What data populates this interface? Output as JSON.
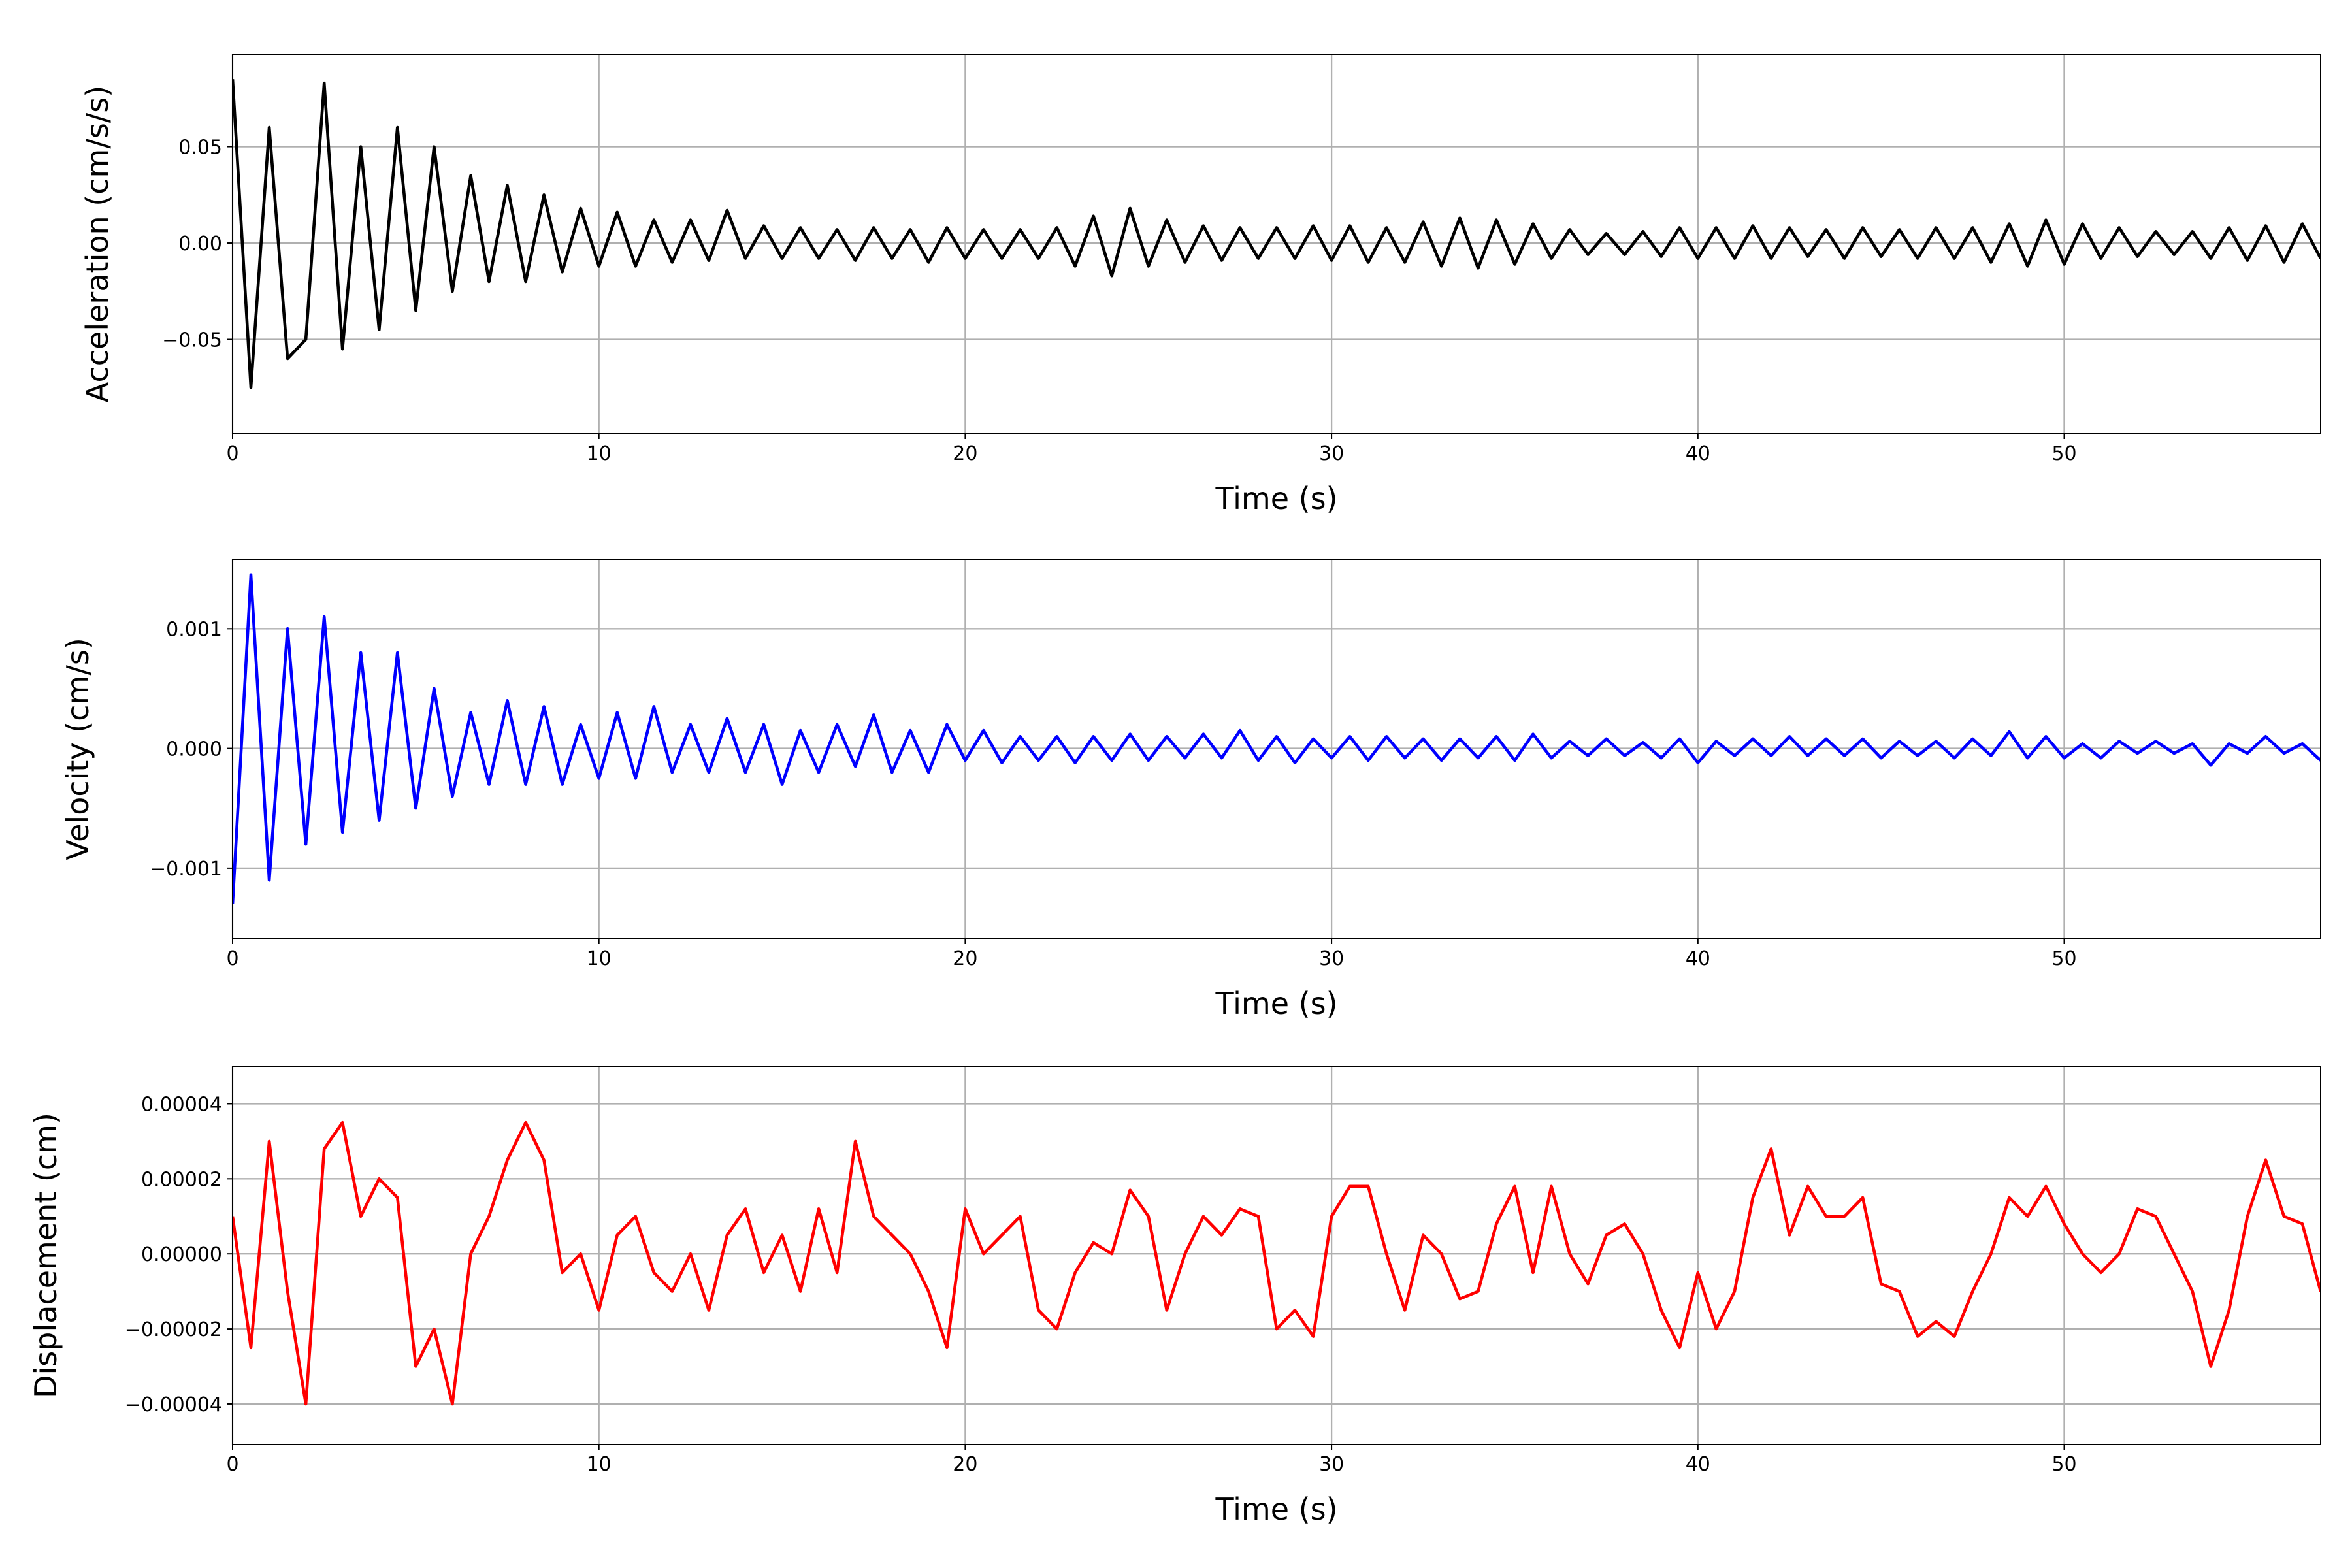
{
  "chart_data": [
    {
      "type": "line",
      "xlabel": "Time (s)",
      "ylabel": "Acceleration (cm/s/s)",
      "color": "#000000",
      "grid": true,
      "xlim": [
        0,
        57
      ],
      "xticks": [
        0,
        10,
        20,
        30,
        40,
        50
      ],
      "ylim": [
        -0.099,
        0.098
      ],
      "yticks": [
        {
          "value": -0.05,
          "label": "−0.05"
        },
        {
          "value": 0,
          "label": "0.00"
        },
        {
          "value": 0.05,
          "label": "0.05"
        }
      ],
      "x": [
        0,
        0.5,
        1,
        1.5,
        2,
        2.5,
        3,
        3.5,
        4,
        4.5,
        5,
        5.5,
        6,
        6.5,
        7,
        7.5,
        8,
        8.5,
        9,
        9.5,
        10,
        10.5,
        11,
        11.5,
        12,
        12.5,
        13,
        13.5,
        14,
        14.5,
        15,
        15.5,
        16,
        16.5,
        17,
        17.5,
        18,
        18.5,
        19,
        19.5,
        20,
        20.5,
        21,
        21.5,
        22,
        22.5,
        23,
        23.5,
        24,
        24.5,
        25,
        25.5,
        26,
        26.5,
        27,
        27.5,
        28,
        28.5,
        29,
        29.5,
        30,
        30.5,
        31,
        31.5,
        32,
        32.5,
        33,
        33.5,
        34,
        34.5,
        35,
        35.5,
        36,
        36.5,
        37,
        37.5,
        38,
        38.5,
        39,
        39.5,
        40,
        40.5,
        41,
        41.5,
        42,
        42.5,
        43,
        43.5,
        44,
        44.5,
        45,
        45.5,
        46,
        46.5,
        47,
        47.5,
        48,
        48.5,
        49,
        49.5,
        50,
        50.5,
        51,
        51.5,
        52,
        52.5,
        53,
        53.5,
        54,
        54.5,
        55,
        55.5,
        56,
        56.5,
        57
      ],
      "values": [
        0.085,
        -0.075,
        0.06,
        -0.06,
        -0.05,
        0.083,
        -0.055,
        0.05,
        -0.045,
        0.06,
        -0.035,
        0.05,
        -0.025,
        0.035,
        -0.02,
        0.03,
        -0.02,
        0.025,
        -0.015,
        0.018,
        -0.012,
        0.016,
        -0.012,
        0.012,
        -0.01,
        0.012,
        -0.009,
        0.017,
        -0.008,
        0.009,
        -0.008,
        0.008,
        -0.008,
        0.007,
        -0.009,
        0.008,
        -0.008,
        0.007,
        -0.01,
        0.008,
        -0.008,
        0.007,
        -0.008,
        0.007,
        -0.008,
        0.008,
        -0.012,
        0.014,
        -0.017,
        0.018,
        -0.012,
        0.012,
        -0.01,
        0.009,
        -0.009,
        0.008,
        -0.008,
        0.008,
        -0.008,
        0.009,
        -0.009,
        0.009,
        -0.01,
        0.008,
        -0.01,
        0.011,
        -0.012,
        0.013,
        -0.013,
        0.012,
        -0.011,
        0.01,
        -0.008,
        0.007,
        -0.006,
        0.005,
        -0.006,
        0.006,
        -0.007,
        0.008,
        -0.008,
        0.008,
        -0.008,
        0.009,
        -0.008,
        0.008,
        -0.007,
        0.007,
        -0.008,
        0.008,
        -0.007,
        0.007,
        -0.008,
        0.008,
        -0.008,
        0.008,
        -0.01,
        0.01,
        -0.012,
        0.012,
        -0.011,
        0.01,
        -0.008,
        0.008,
        -0.007,
        0.006,
        -0.006,
        0.006,
        -0.008,
        0.008,
        -0.009,
        0.009,
        -0.01,
        0.01,
        -0.008
      ]
    },
    {
      "type": "line",
      "xlabel": "Time (s)",
      "ylabel": "Velocity (cm/s)",
      "color": "#0000ff",
      "grid": true,
      "xlim": [
        0,
        57
      ],
      "xticks": [
        0,
        10,
        20,
        30,
        40,
        50
      ],
      "ylim": [
        -0.00159,
        0.00158
      ],
      "yticks": [
        {
          "value": -0.001,
          "label": "−0.001"
        },
        {
          "value": 0,
          "label": "0.000"
        },
        {
          "value": 0.001,
          "label": "0.001"
        }
      ],
      "x": [
        0,
        0.5,
        1,
        1.5,
        2,
        2.5,
        3,
        3.5,
        4,
        4.5,
        5,
        5.5,
        6,
        6.5,
        7,
        7.5,
        8,
        8.5,
        9,
        9.5,
        10,
        10.5,
        11,
        11.5,
        12,
        12.5,
        13,
        13.5,
        14,
        14.5,
        15,
        15.5,
        16,
        16.5,
        17,
        17.5,
        18,
        18.5,
        19,
        19.5,
        20,
        20.5,
        21,
        21.5,
        22,
        22.5,
        23,
        23.5,
        24,
        24.5,
        25,
        25.5,
        26,
        26.5,
        27,
        27.5,
        28,
        28.5,
        29,
        29.5,
        30,
        30.5,
        31,
        31.5,
        32,
        32.5,
        33,
        33.5,
        34,
        34.5,
        35,
        35.5,
        36,
        36.5,
        37,
        37.5,
        38,
        38.5,
        39,
        39.5,
        40,
        40.5,
        41,
        41.5,
        42,
        42.5,
        43,
        43.5,
        44,
        44.5,
        45,
        45.5,
        46,
        46.5,
        47,
        47.5,
        48,
        48.5,
        49,
        49.5,
        50,
        50.5,
        51,
        51.5,
        52,
        52.5,
        53,
        53.5,
        54,
        54.5,
        55,
        55.5,
        56,
        56.5,
        57
      ],
      "values": [
        -0.0013,
        0.00145,
        -0.0011,
        0.001,
        -0.0008,
        0.0011,
        -0.0007,
        0.0008,
        -0.0006,
        0.0008,
        -0.0005,
        0.0005,
        -0.0004,
        0.0003,
        -0.0003,
        0.0004,
        -0.0003,
        0.00035,
        -0.0003,
        0.0002,
        -0.00025,
        0.0003,
        -0.00025,
        0.00035,
        -0.0002,
        0.0002,
        -0.0002,
        0.00025,
        -0.0002,
        0.0002,
        -0.0003,
        0.00015,
        -0.0002,
        0.0002,
        -0.00015,
        0.00028,
        -0.0002,
        0.00015,
        -0.0002,
        0.0002,
        -0.0001,
        0.00015,
        -0.00012,
        0.0001,
        -0.0001,
        0.0001,
        -0.00012,
        0.0001,
        -0.0001,
        0.00012,
        -0.0001,
        0.0001,
        -8e-05,
        0.00012,
        -8e-05,
        0.00015,
        -0.0001,
        0.0001,
        -0.00012,
        8e-05,
        -8e-05,
        0.0001,
        -0.0001,
        0.0001,
        -8e-05,
        8e-05,
        -0.0001,
        8e-05,
        -8e-05,
        0.0001,
        -0.0001,
        0.00012,
        -8e-05,
        6e-05,
        -6e-05,
        8e-05,
        -6e-05,
        5e-05,
        -8e-05,
        8e-05,
        -0.00012,
        6e-05,
        -6e-05,
        8e-05,
        -6e-05,
        0.0001,
        -6e-05,
        8e-05,
        -6e-05,
        8e-05,
        -8e-05,
        6e-05,
        -6e-05,
        6e-05,
        -8e-05,
        8e-05,
        -6e-05,
        0.00014,
        -8e-05,
        0.0001,
        -8e-05,
        4e-05,
        -8e-05,
        6e-05,
        -4e-05,
        6e-05,
        -4e-05,
        4e-05,
        -0.00014,
        4e-05,
        -4e-05,
        0.0001,
        -4e-05,
        4e-05,
        -0.0001
      ]
    },
    {
      "type": "line",
      "xlabel": "Time (s)",
      "ylabel": "Displacement (cm)",
      "color": "#ff0000",
      "grid": true,
      "xlim": [
        0,
        57
      ],
      "xticks": [
        0,
        10,
        20,
        30,
        40,
        50
      ],
      "ylim": [
        -5.08e-05,
        5e-05
      ],
      "yticks": [
        {
          "value": -4e-05,
          "label": "−0.00004"
        },
        {
          "value": -2e-05,
          "label": "−0.00002"
        },
        {
          "value": 0,
          "label": "0.00000"
        },
        {
          "value": 2e-05,
          "label": "0.00002"
        },
        {
          "value": 4e-05,
          "label": "0.00004"
        }
      ],
      "x": [
        0,
        0.5,
        1,
        1.5,
        2,
        2.5,
        3,
        3.5,
        4,
        4.5,
        5,
        5.5,
        6,
        6.5,
        7,
        7.5,
        8,
        8.5,
        9,
        9.5,
        10,
        10.5,
        11,
        11.5,
        12,
        12.5,
        13,
        13.5,
        14,
        14.5,
        15,
        15.5,
        16,
        16.5,
        17,
        17.5,
        18,
        18.5,
        19,
        19.5,
        20,
        20.5,
        21,
        21.5,
        22,
        22.5,
        23,
        23.5,
        24,
        24.5,
        25,
        25.5,
        26,
        26.5,
        27,
        27.5,
        28,
        28.5,
        29,
        29.5,
        30,
        30.5,
        31,
        31.5,
        32,
        32.5,
        33,
        33.5,
        34,
        34.5,
        35,
        35.5,
        36,
        36.5,
        37,
        37.5,
        38,
        38.5,
        39,
        39.5,
        40,
        40.5,
        41,
        41.5,
        42,
        42.5,
        43,
        43.5,
        44,
        44.5,
        45,
        45.5,
        46,
        46.5,
        47,
        47.5,
        48,
        48.5,
        49,
        49.5,
        50,
        50.5,
        51,
        51.5,
        52,
        52.5,
        53,
        53.5,
        54,
        54.5,
        55,
        55.5,
        56,
        56.5,
        57
      ],
      "values": [
        1e-05,
        -2.5e-05,
        3e-05,
        -1e-05,
        -4e-05,
        2.8e-05,
        3.5e-05,
        1e-05,
        2e-05,
        1.5e-05,
        -3e-05,
        -2e-05,
        -4e-05,
        0,
        1e-05,
        2.5e-05,
        3.5e-05,
        2.5e-05,
        -5e-06,
        0,
        -1.5e-05,
        5e-06,
        1e-05,
        -5e-06,
        -1e-05,
        0,
        -1.5e-05,
        5e-06,
        1.2e-05,
        -5e-06,
        5e-06,
        -1e-05,
        1.2e-05,
        -5e-06,
        3e-05,
        1e-05,
        5e-06,
        0,
        -1e-05,
        -2.5e-05,
        1.2e-05,
        0,
        5e-06,
        1e-05,
        -1.5e-05,
        -2e-05,
        -5e-06,
        3e-06,
        0,
        1.7e-05,
        1e-05,
        -1.5e-05,
        0,
        1e-05,
        5e-06,
        1.2e-05,
        1e-05,
        -2e-05,
        -1.5e-05,
        -2.2e-05,
        1e-05,
        1.8e-05,
        1.8e-05,
        0,
        -1.5e-05,
        5e-06,
        0,
        -1.2e-05,
        -1e-05,
        8e-06,
        1.8e-05,
        -5e-06,
        1.8e-05,
        0,
        -8e-06,
        5e-06,
        8e-06,
        0,
        -1.5e-05,
        -2.5e-05,
        -5e-06,
        -2e-05,
        -1e-05,
        1.5e-05,
        2.8e-05,
        5e-06,
        1.8e-05,
        1e-05,
        1e-05,
        1.5e-05,
        -8e-06,
        -1e-05,
        -2.2e-05,
        -1.8e-05,
        -2.2e-05,
        -1e-05,
        0,
        1.5e-05,
        1e-05,
        1.8e-05,
        8e-06,
        0,
        -5e-06,
        0,
        1.2e-05,
        1e-05,
        0,
        -1e-05,
        -3e-05,
        -1.5e-05,
        1e-05,
        2.5e-05,
        1e-05,
        8e-06,
        -1e-05
      ]
    }
  ]
}
